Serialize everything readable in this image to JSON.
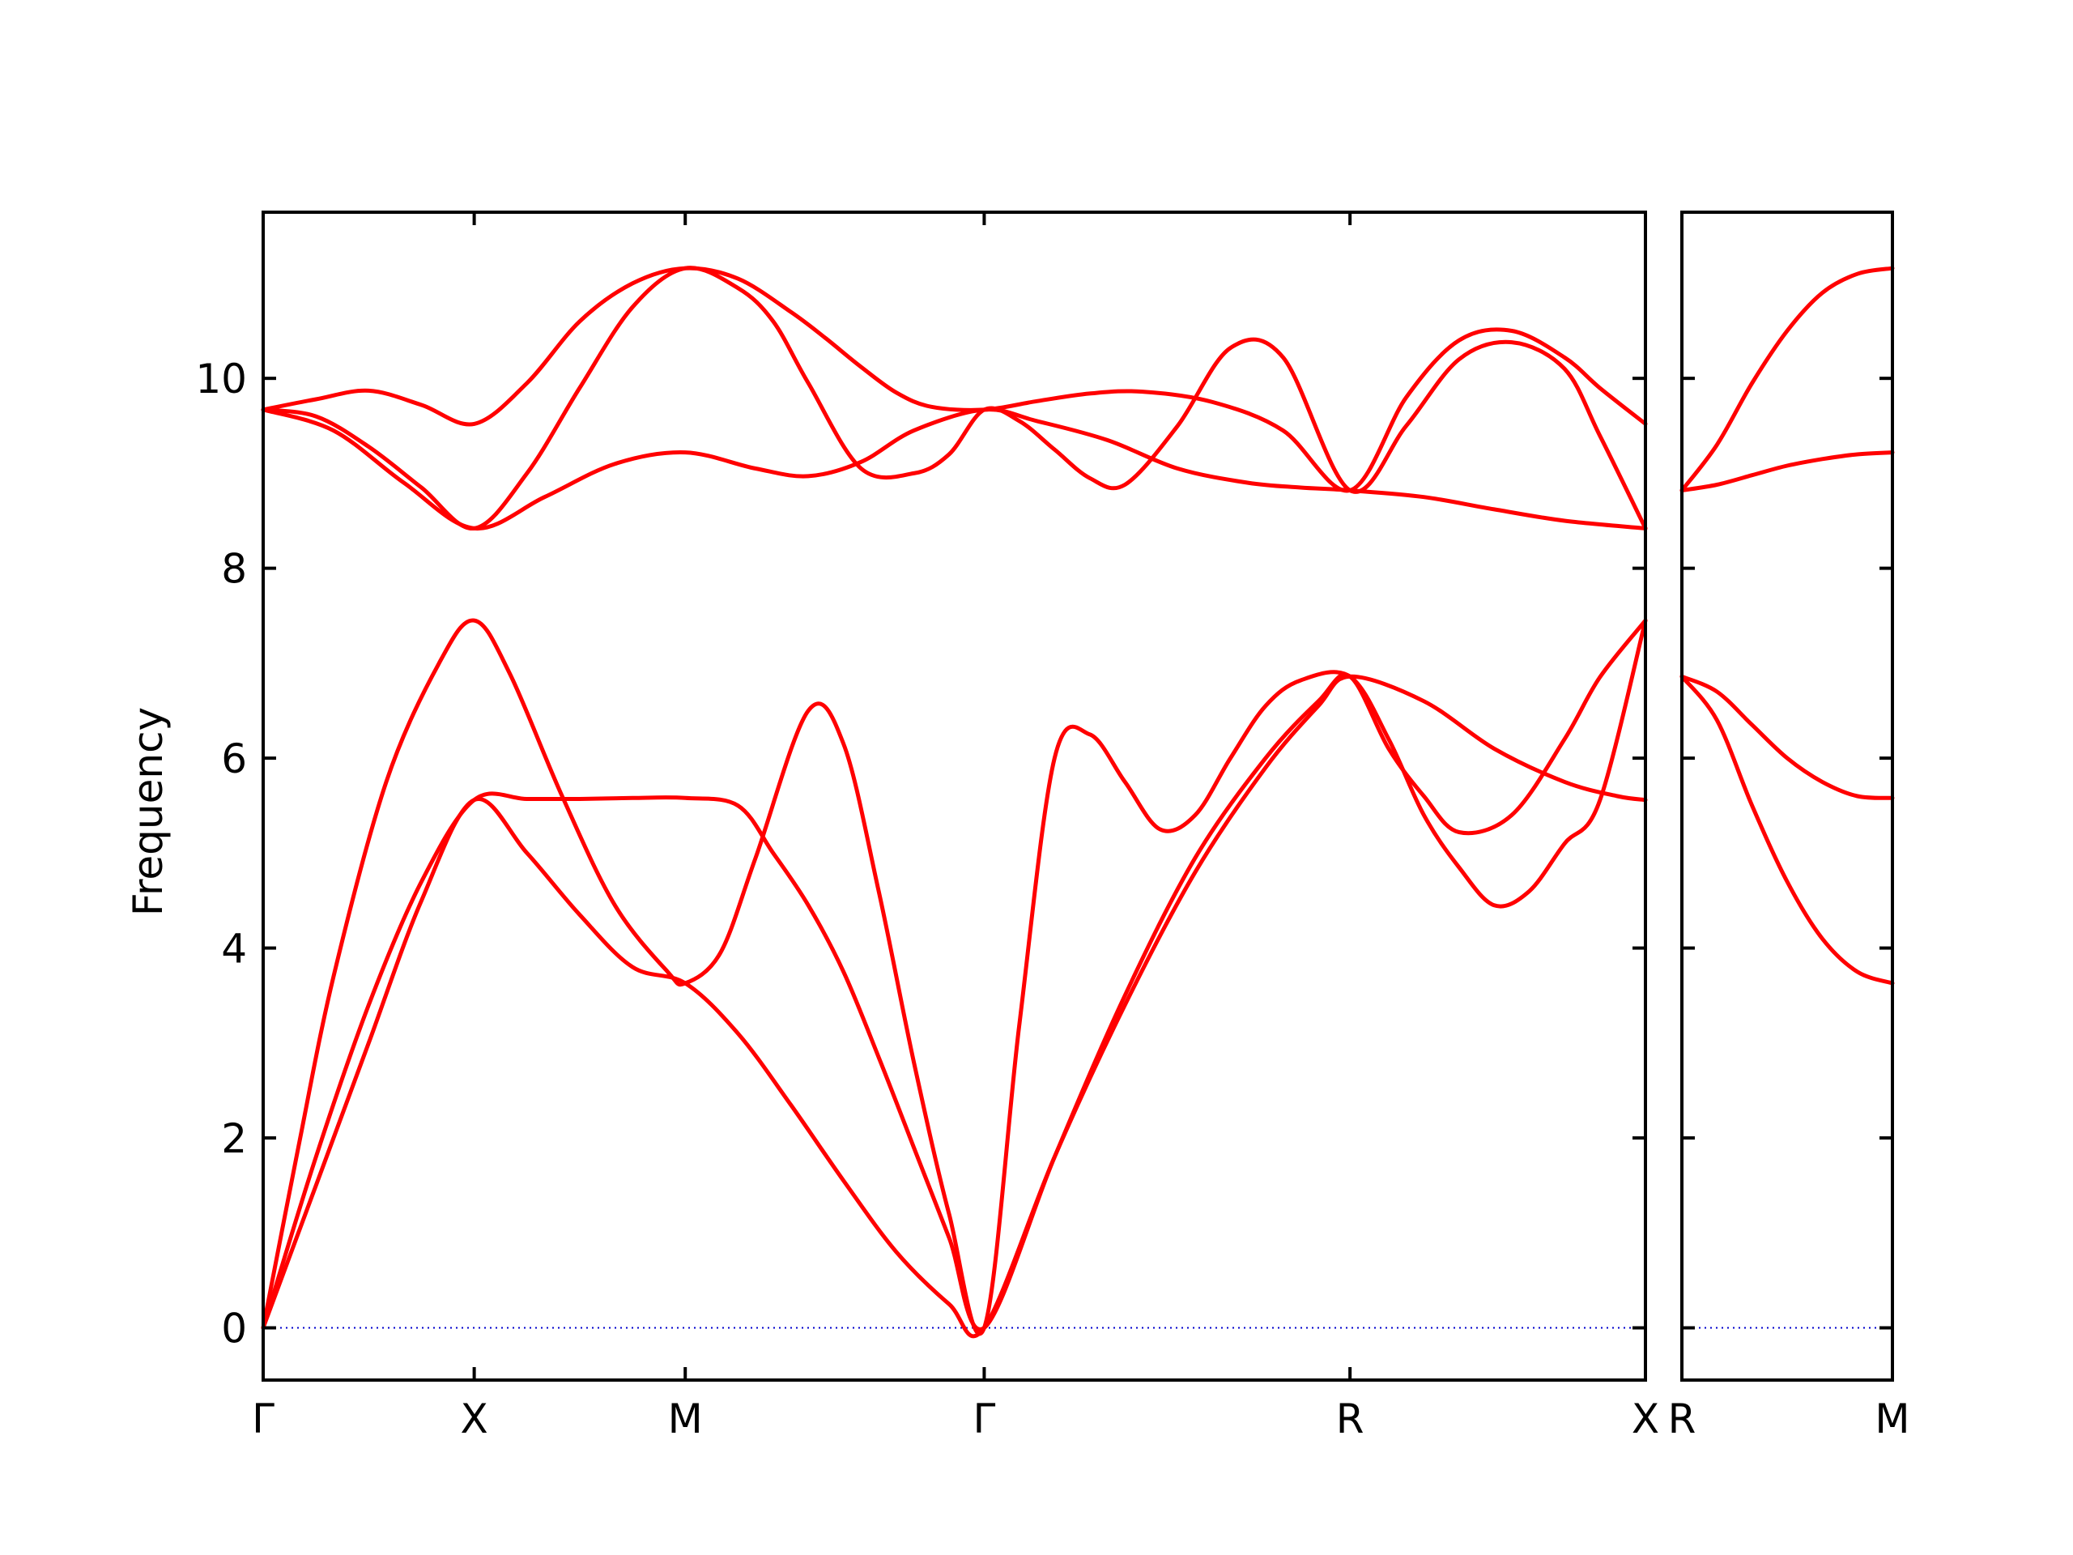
{
  "chart_data": {
    "type": "line",
    "title": "",
    "ylabel": "Frequency",
    "xlabel": "",
    "ylim": [
      -0.55,
      11.75
    ],
    "y_ticks": [
      0,
      2,
      4,
      6,
      8,
      10
    ],
    "grid": false,
    "legend": "none",
    "colors": {
      "bands": "#ff0000",
      "zero_line": "#0000cc"
    },
    "panels": [
      {
        "x_range": [
          0,
          3.93
        ],
        "x_ticks": [
          {
            "x": 0,
            "label": "Γ"
          },
          {
            "x": 0.6,
            "label": "X"
          },
          {
            "x": 1.2,
            "label": "M"
          },
          {
            "x": 2.05,
            "label": "Γ"
          },
          {
            "x": 3.09,
            "label": "R"
          },
          {
            "x": 3.93,
            "label": "X"
          }
        ],
        "series": [
          {
            "x": [
              0,
              0.15,
              0.3,
              0.45,
              0.6,
              0.75,
              0.9,
              1.05,
              1.2,
              1.35,
              1.5,
              1.6,
              1.7,
              1.8,
              1.9,
              2.05,
              2.2,
              2.35,
              2.5,
              2.7,
              2.9,
              3.09,
              3.25,
              3.4,
              3.55,
              3.7,
              3.8,
              3.93
            ],
            "y": [
              9.67,
              9.78,
              9.87,
              9.72,
              9.52,
              9.95,
              10.6,
              11.0,
              11.16,
              11.05,
              10.7,
              10.42,
              10.12,
              9.85,
              9.7,
              9.67,
              9.76,
              9.84,
              9.86,
              9.75,
              9.45,
              8.82,
              9.8,
              10.4,
              10.5,
              10.22,
              9.9,
              9.52
            ]
          },
          {
            "x": [
              0,
              0.15,
              0.3,
              0.45,
              0.6,
              0.75,
              0.9,
              1.05,
              1.2,
              1.35,
              1.45,
              1.55,
              1.7,
              1.85,
              1.95,
              2.05,
              2.15,
              2.25,
              2.35,
              2.45,
              2.6,
              2.75,
              2.9,
              3.09,
              3.25,
              3.4,
              3.55,
              3.7,
              3.8,
              3.93
            ],
            "y": [
              9.67,
              9.6,
              9.28,
              8.85,
              8.42,
              9.0,
              9.9,
              10.75,
              11.16,
              10.95,
              10.6,
              9.95,
              9.05,
              9.0,
              9.2,
              9.67,
              9.55,
              9.25,
              8.95,
              8.88,
              9.5,
              10.32,
              10.22,
              8.82,
              9.5,
              10.2,
              10.38,
              10.1,
              9.4,
              8.42
            ]
          },
          {
            "x": [
              0,
              0.2,
              0.4,
              0.6,
              0.8,
              1.0,
              1.2,
              1.4,
              1.55,
              1.7,
              1.85,
              2.05,
              2.2,
              2.4,
              2.6,
              2.8,
              2.95,
              3.09,
              3.3,
              3.5,
              3.7,
              3.93
            ],
            "y": [
              9.67,
              9.45,
              8.9,
              8.42,
              8.75,
              9.1,
              9.22,
              9.05,
              8.97,
              9.12,
              9.45,
              9.67,
              9.55,
              9.35,
              9.05,
              8.9,
              8.85,
              8.82,
              8.75,
              8.62,
              8.5,
              8.42
            ]
          },
          {
            "x": [
              0,
              0.1,
              0.2,
              0.35,
              0.5,
              0.6,
              0.7,
              0.85,
              1.0,
              1.15,
              1.2,
              1.3,
              1.4,
              1.55,
              1.65,
              1.75,
              1.85,
              1.95,
              2.05,
              2.15,
              2.25,
              2.35,
              2.45,
              2.55,
              2.65,
              2.75,
              2.85,
              2.95,
              3.09,
              3.2,
              3.3,
              3.4,
              3.5,
              3.6,
              3.7,
              3.8,
              3.93
            ],
            "y": [
              0,
              1.9,
              3.7,
              5.75,
              7.0,
              7.45,
              6.9,
              5.6,
              4.45,
              3.75,
              3.63,
              3.95,
              4.95,
              6.5,
              6.15,
              4.6,
              2.8,
              1.2,
              0,
              3.2,
              6.0,
              6.25,
              5.75,
              5.25,
              5.4,
              6.0,
              6.55,
              6.82,
              6.86,
              6.2,
              5.4,
              4.85,
              4.45,
              4.6,
              5.1,
              5.55,
              7.45
            ]
          },
          {
            "x": [
              0,
              0.15,
              0.3,
              0.45,
              0.6,
              0.75,
              0.9,
              1.05,
              1.2,
              1.35,
              1.45,
              1.55,
              1.65,
              1.75,
              1.85,
              1.95,
              2.05,
              2.25,
              2.45,
              2.65,
              2.85,
              3.0,
              3.09,
              3.2,
              3.3,
              3.4,
              3.55,
              3.7,
              3.8,
              3.93
            ],
            "y": [
              0,
              1.8,
              3.4,
              4.7,
              5.56,
              5.57,
              5.57,
              5.58,
              5.58,
              5.5,
              5.0,
              4.45,
              3.75,
              2.85,
              1.9,
              0.95,
              0,
              1.8,
              3.5,
              4.95,
              6.0,
              6.6,
              6.86,
              6.1,
              5.6,
              5.22,
              5.4,
              6.2,
              6.85,
              7.45
            ]
          },
          {
            "x": [
              0,
              0.15,
              0.3,
              0.45,
              0.6,
              0.75,
              0.9,
              1.05,
              1.2,
              1.35,
              1.5,
              1.65,
              1.8,
              1.95,
              2.05,
              2.25,
              2.45,
              2.65,
              2.85,
              3.0,
              3.09,
              3.3,
              3.5,
              3.7,
              3.85,
              3.93
            ],
            "y": [
              0,
              1.5,
              3.0,
              4.5,
              5.56,
              5.0,
              4.35,
              3.8,
              3.63,
              3.1,
              2.35,
              1.55,
              0.8,
              0.25,
              0,
              1.8,
              3.4,
              4.8,
              5.9,
              6.55,
              6.86,
              6.6,
              6.1,
              5.75,
              5.6,
              5.56
            ]
          }
        ]
      },
      {
        "x_range": [
          0,
          0.6
        ],
        "x_ticks": [
          {
            "x": 0,
            "label": "R"
          },
          {
            "x": 0.6,
            "label": "M"
          }
        ],
        "series": [
          {
            "x": [
              0,
              0.1,
              0.2,
              0.3,
              0.4,
              0.5,
              0.6
            ],
            "y": [
              8.82,
              9.3,
              9.95,
              10.5,
              10.9,
              11.1,
              11.16
            ]
          },
          {
            "x": [
              0,
              0.1,
              0.2,
              0.3,
              0.4,
              0.5,
              0.6
            ],
            "y": [
              8.82,
              8.88,
              8.98,
              9.08,
              9.15,
              9.2,
              9.22
            ]
          },
          {
            "x": [
              0,
              0.1,
              0.2,
              0.3,
              0.4,
              0.5,
              0.6
            ],
            "y": [
              6.86,
              6.7,
              6.35,
              6.0,
              5.75,
              5.6,
              5.58
            ]
          },
          {
            "x": [
              0,
              0.1,
              0.2,
              0.3,
              0.4,
              0.5,
              0.6
            ],
            "y": [
              6.86,
              6.4,
              5.5,
              4.7,
              4.1,
              3.75,
              3.63
            ]
          }
        ]
      }
    ]
  }
}
